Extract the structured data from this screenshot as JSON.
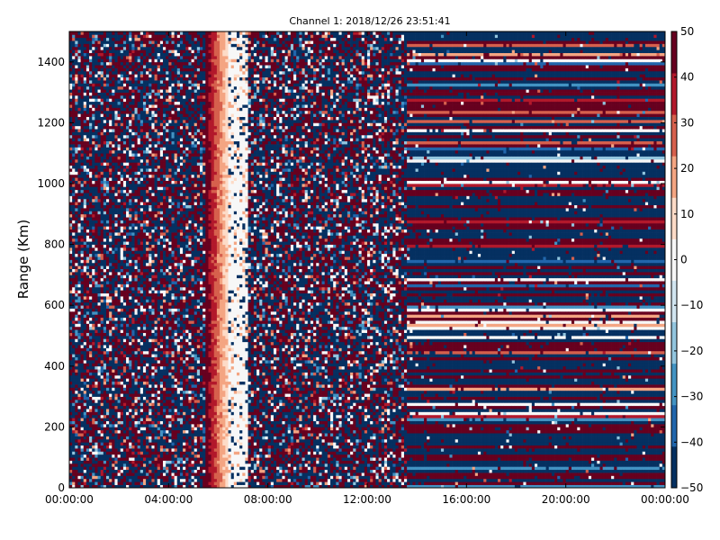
{
  "chart_data": {
    "type": "heatmap",
    "title": "Channel 1: 2018/12/26 23:51:41",
    "ylabel": "Range (Km)",
    "xlabel": "",
    "x_ticks": [
      "00:00:00",
      "04:00:00",
      "08:00:00",
      "12:00:00",
      "16:00:00",
      "20:00:00",
      "00:00:00"
    ],
    "x_range_hours": [
      0,
      24
    ],
    "y_ticks": [
      "0",
      "200",
      "400",
      "600",
      "800",
      "1000",
      "1200",
      "1400"
    ],
    "ylim": [
      0,
      1500
    ],
    "colorbar": {
      "ticks": [
        "50",
        "40",
        "30",
        "20",
        "10",
        "0",
        "−10",
        "−20",
        "−30",
        "−40",
        "−50"
      ],
      "range": [
        -50,
        50
      ],
      "colormap": "RdBu_r",
      "colors": [
        "#053061",
        "#2166ac",
        "#4393c3",
        "#92c5de",
        "#d1e5f0",
        "#f7f7f7",
        "#fddbc7",
        "#f4a582",
        "#d6604d",
        "#b2182b",
        "#67001f"
      ]
    },
    "grid": false,
    "regions": [
      {
        "description": "noisy mixed values",
        "x_start_hours": 0,
        "x_end_hours": 5.5
      },
      {
        "description": "coherent positive band",
        "x_start_hours": 5.5,
        "x_end_hours": 6.4
      },
      {
        "description": "near-zero band",
        "x_start_hours": 6.4,
        "x_end_hours": 7.2
      },
      {
        "description": "noisy mixed values",
        "x_start_hours": 7.2,
        "x_end_hours": 13.6
      },
      {
        "description": "horizontally striped range-dependent values",
        "x_start_hours": 13.6,
        "x_end_hours": 24
      }
    ]
  }
}
